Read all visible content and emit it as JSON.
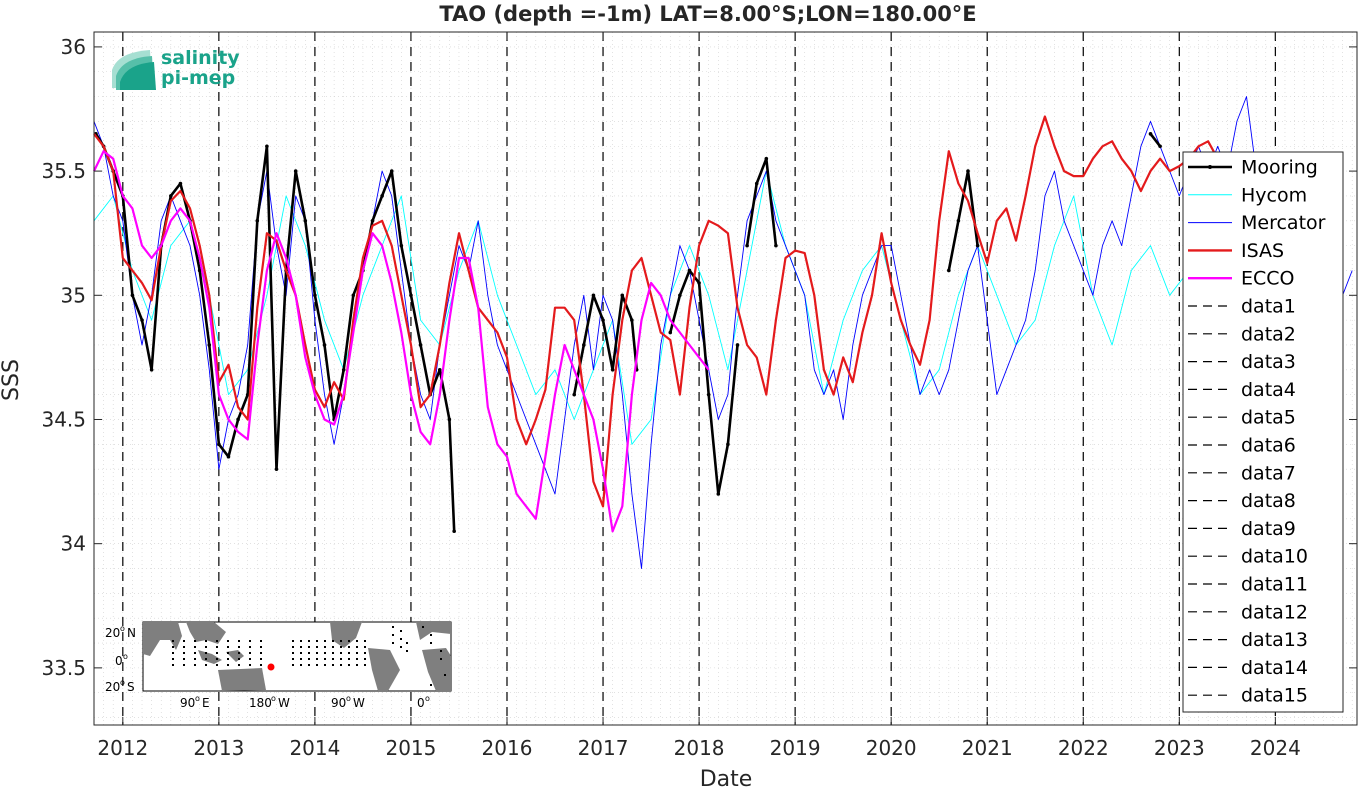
{
  "chart_data": {
    "type": "line",
    "title": "TAO (depth =-1m) LAT=8.00°S;LON=180.00°E",
    "xlabel": "Date",
    "ylabel": "SSS",
    "xlim": [
      2011.7,
      2024.85
    ],
    "ylim": [
      33.27,
      36.06
    ],
    "x_ticks": [
      2012,
      2013,
      2014,
      2015,
      2016,
      2017,
      2018,
      2019,
      2020,
      2021,
      2022,
      2023,
      2024
    ],
    "x_tick_labels": [
      "2012",
      "2013",
      "2014",
      "2015",
      "2016",
      "2017",
      "2018",
      "2019",
      "2020",
      "2021",
      "2022",
      "2023",
      "2024"
    ],
    "y_ticks": [
      33.5,
      34,
      34.5,
      35,
      35.5,
      36
    ],
    "y_tick_labels": [
      "33.5",
      "34",
      "34.5",
      "35",
      "35.5",
      "36"
    ],
    "grid": "minor-dotted",
    "legend_position": "right",
    "series": [
      {
        "name": "Mooring",
        "color": "#000000",
        "style": "solid-dots",
        "segments": [
          {
            "x": [
              2011.72,
              2011.8,
              2011.9,
              2012.0,
              2012.1,
              2012.2,
              2012.3,
              2012.4,
              2012.5,
              2012.6,
              2012.7,
              2012.8,
              2012.9,
              2013.0,
              2013.1,
              2013.2,
              2013.3,
              2013.4,
              2013.5,
              2013.6,
              2013.7,
              2013.8,
              2013.9,
              2014.0,
              2014.1,
              2014.2,
              2014.3,
              2014.4,
              2014.5,
              2014.6,
              2014.7,
              2014.8,
              2014.9,
              2015.0,
              2015.1,
              2015.2,
              2015.3,
              2015.4,
              2015.45
            ],
            "y": [
              35.65,
              35.6,
              35.5,
              35.4,
              35.0,
              34.9,
              34.7,
              35.2,
              35.4,
              35.45,
              35.3,
              35.1,
              34.8,
              34.4,
              34.35,
              34.5,
              34.6,
              35.3,
              35.6,
              34.3,
              35.1,
              35.5,
              35.3,
              35.0,
              34.8,
              34.5,
              34.7,
              35.0,
              35.1,
              35.3,
              35.4,
              35.5,
              35.2,
              35.0,
              34.8,
              34.6,
              34.7,
              34.5,
              34.05
            ]
          },
          {
            "x": [
              2016.7,
              2016.8,
              2016.9,
              2017.0,
              2017.1,
              2017.2,
              2017.3,
              2017.35
            ],
            "y": [
              34.6,
              34.8,
              35.0,
              34.9,
              34.7,
              35.0,
              34.9,
              34.7
            ]
          },
          {
            "x": [
              2017.7,
              2017.8,
              2017.9,
              2018.0,
              2018.1,
              2018.2,
              2018.3,
              2018.4
            ],
            "y": [
              34.85,
              35.0,
              35.1,
              35.05,
              34.6,
              34.2,
              34.4,
              34.8
            ]
          },
          {
            "x": [
              2018.5,
              2018.6,
              2018.7,
              2018.8
            ],
            "y": [
              35.2,
              35.45,
              35.55,
              35.2
            ]
          },
          {
            "x": [
              2020.6,
              2020.7,
              2020.8,
              2020.9
            ],
            "y": [
              35.1,
              35.3,
              35.5,
              35.2
            ]
          },
          {
            "x": [
              2022.7,
              2022.8
            ],
            "y": [
              35.65,
              35.6
            ]
          }
        ]
      },
      {
        "name": "Hycom",
        "color": "#00ffff",
        "style": "solid",
        "x": [
          2011.7,
          2011.9,
          2012.1,
          2012.3,
          2012.5,
          2012.7,
          2012.9,
          2013.1,
          2013.3,
          2013.5,
          2013.7,
          2013.9,
          2014.1,
          2014.3,
          2014.5,
          2014.7,
          2014.9,
          2015.1,
          2015.3,
          2015.5,
          2015.7,
          2015.9,
          2016.1,
          2016.3,
          2016.5,
          2016.7,
          2016.9,
          2017.1,
          2017.3,
          2017.5,
          2017.7,
          2017.9,
          2018.1,
          2018.3,
          2018.5,
          2018.7,
          2018.9,
          2019.1,
          2019.3,
          2019.5,
          2019.7,
          2019.9,
          2020.1,
          2020.3,
          2020.5,
          2020.7,
          2020.9,
          2021.1,
          2021.3,
          2021.5,
          2021.7,
          2021.9,
          2022.1,
          2022.3,
          2022.5,
          2022.7,
          2022.9,
          2023.1,
          2023.3,
          2023.5,
          2023.7,
          2023.9
        ],
        "y": [
          35.3,
          35.4,
          35.1,
          34.9,
          35.2,
          35.3,
          35.0,
          34.6,
          34.7,
          35.0,
          35.4,
          35.2,
          34.9,
          34.7,
          35.0,
          35.2,
          35.4,
          34.9,
          34.8,
          35.1,
          35.3,
          35.0,
          34.8,
          34.6,
          34.7,
          34.5,
          34.7,
          34.9,
          34.4,
          34.5,
          35.0,
          35.2,
          35.0,
          34.7,
          35.1,
          35.5,
          35.2,
          35.0,
          34.6,
          34.9,
          35.1,
          35.2,
          34.9,
          34.6,
          34.7,
          35.0,
          35.2,
          35.0,
          34.8,
          34.9,
          35.2,
          35.4,
          35.0,
          34.8,
          35.1,
          35.2,
          35.0,
          35.1,
          35.2,
          35.3,
          35.1,
          35.2
        ]
      },
      {
        "name": "Mercator",
        "color": "#0000ff",
        "style": "solid",
        "x": [
          2011.7,
          2011.8,
          2011.9,
          2012.0,
          2012.1,
          2012.2,
          2012.3,
          2012.4,
          2012.5,
          2012.6,
          2012.7,
          2012.8,
          2012.9,
          2013.0,
          2013.1,
          2013.2,
          2013.3,
          2013.4,
          2013.5,
          2013.6,
          2013.7,
          2013.8,
          2013.9,
          2014.0,
          2014.1,
          2014.2,
          2014.3,
          2014.4,
          2014.5,
          2014.6,
          2014.7,
          2014.8,
          2014.9,
          2015.0,
          2015.1,
          2015.2,
          2015.3,
          2015.4,
          2015.5,
          2015.6,
          2015.7,
          2015.8,
          2015.9,
          2016.0,
          2016.1,
          2016.2,
          2016.3,
          2016.4,
          2016.5,
          2016.6,
          2016.7,
          2016.8,
          2016.9,
          2017.0,
          2017.1,
          2017.2,
          2017.3,
          2017.4,
          2017.5,
          2017.6,
          2017.7,
          2017.8,
          2017.9,
          2018.0,
          2018.1,
          2018.2,
          2018.3,
          2018.4,
          2018.5,
          2018.6,
          2018.7,
          2018.8,
          2018.9,
          2019.0,
          2019.1,
          2019.2,
          2019.3,
          2019.4,
          2019.5,
          2019.6,
          2019.7,
          2019.8,
          2019.9,
          2020.0,
          2020.1,
          2020.2,
          2020.3,
          2020.4,
          2020.5,
          2020.6,
          2020.7,
          2020.8,
          2020.9,
          2021.0,
          2021.1,
          2021.2,
          2021.3,
          2021.4,
          2021.5,
          2021.6,
          2021.7,
          2021.8,
          2021.9,
          2022.0,
          2022.1,
          2022.2,
          2022.3,
          2022.4,
          2022.5,
          2022.6,
          2022.7,
          2022.8,
          2022.9,
          2023.0,
          2023.1,
          2023.2,
          2023.3,
          2023.4,
          2023.5,
          2023.6,
          2023.7,
          2023.8,
          2023.9,
          2024.0,
          2024.1,
          2024.2,
          2024.3,
          2024.4,
          2024.5,
          2024.6,
          2024.7,
          2024.8
        ],
        "y": [
          35.7,
          35.6,
          35.4,
          35.3,
          35.0,
          34.8,
          35.0,
          35.3,
          35.4,
          35.3,
          35.2,
          35.0,
          34.7,
          34.3,
          34.5,
          34.6,
          34.8,
          35.3,
          35.5,
          35.2,
          35.0,
          35.4,
          35.3,
          34.9,
          34.6,
          34.4,
          34.6,
          34.9,
          35.1,
          35.3,
          35.5,
          35.4,
          35.1,
          34.8,
          34.6,
          34.5,
          34.8,
          35.0,
          35.2,
          35.1,
          35.3,
          35.0,
          34.8,
          34.7,
          34.6,
          34.5,
          34.4,
          34.3,
          34.2,
          34.5,
          34.8,
          35.0,
          34.7,
          35.0,
          34.9,
          34.6,
          34.2,
          33.9,
          34.4,
          34.8,
          35.0,
          35.2,
          35.1,
          34.9,
          34.7,
          34.5,
          34.6,
          35.0,
          35.3,
          35.4,
          35.5,
          35.3,
          35.2,
          35.1,
          35.0,
          34.7,
          34.6,
          34.7,
          34.5,
          34.8,
          35.0,
          35.1,
          35.2,
          35.2,
          35.0,
          34.8,
          34.6,
          34.7,
          34.6,
          34.7,
          34.9,
          35.1,
          35.2,
          34.9,
          34.6,
          34.7,
          34.8,
          34.9,
          35.1,
          35.4,
          35.5,
          35.3,
          35.2,
          35.1,
          35.0,
          35.2,
          35.3,
          35.2,
          35.4,
          35.6,
          35.7,
          35.6,
          35.5,
          35.4,
          35.5,
          35.6,
          35.5,
          35.6,
          35.5,
          35.7,
          35.8,
          35.5,
          35.3,
          35.2,
          35.1,
          35.0,
          35.1,
          35.0,
          35.1,
          35.2,
          35.0,
          35.1
        ]
      },
      {
        "name": "ISAS",
        "color": "#e41a1c",
        "style": "solid",
        "x": [
          2011.7,
          2011.8,
          2011.9,
          2012.0,
          2012.1,
          2012.2,
          2012.3,
          2012.4,
          2012.5,
          2012.6,
          2012.7,
          2012.8,
          2012.9,
          2013.0,
          2013.1,
          2013.2,
          2013.3,
          2013.4,
          2013.5,
          2013.6,
          2013.7,
          2013.8,
          2013.9,
          2014.0,
          2014.1,
          2014.2,
          2014.3,
          2014.4,
          2014.5,
          2014.6,
          2014.7,
          2014.8,
          2014.9,
          2015.0,
          2015.1,
          2015.2,
          2015.3,
          2015.4,
          2015.5,
          2015.6,
          2015.7,
          2015.8,
          2015.9,
          2016.0,
          2016.1,
          2016.2,
          2016.3,
          2016.4,
          2016.5,
          2016.6,
          2016.7,
          2016.8,
          2016.9,
          2017.0,
          2017.1,
          2017.2,
          2017.3,
          2017.4,
          2017.5,
          2017.6,
          2017.7,
          2017.8,
          2017.9,
          2018.0,
          2018.1,
          2018.2,
          2018.3,
          2018.4,
          2018.5,
          2018.6,
          2018.7,
          2018.8,
          2018.9,
          2019.0,
          2019.1,
          2019.2,
          2019.3,
          2019.4,
          2019.5,
          2019.6,
          2019.7,
          2019.8,
          2019.9,
          2020.0,
          2020.1,
          2020.2,
          2020.3,
          2020.4,
          2020.5,
          2020.6,
          2020.7,
          2020.8,
          2020.9,
          2021.0,
          2021.1,
          2021.2,
          2021.3,
          2021.4,
          2021.5,
          2021.6,
          2021.7,
          2021.8,
          2021.9,
          2022.0,
          2022.1,
          2022.2,
          2022.3,
          2022.4,
          2022.5,
          2022.6,
          2022.7,
          2022.8,
          2022.9,
          2023.0,
          2023.1,
          2023.2,
          2023.3,
          2023.4,
          2023.5,
          2023.6,
          2023.7,
          2023.8
        ],
        "y": [
          35.65,
          35.6,
          35.5,
          35.15,
          35.1,
          35.05,
          34.98,
          35.2,
          35.38,
          35.42,
          35.35,
          35.2,
          35.0,
          34.65,
          34.72,
          34.55,
          34.5,
          34.95,
          35.25,
          35.22,
          35.1,
          35.0,
          34.8,
          34.62,
          34.55,
          34.65,
          34.58,
          34.9,
          35.15,
          35.28,
          35.3,
          35.2,
          35.0,
          34.8,
          34.55,
          34.6,
          34.8,
          35.05,
          35.25,
          35.1,
          34.95,
          34.9,
          34.85,
          34.75,
          34.5,
          34.4,
          34.5,
          34.62,
          34.95,
          34.95,
          34.9,
          34.6,
          34.25,
          34.15,
          34.6,
          34.9,
          35.1,
          35.15,
          35.0,
          34.85,
          34.82,
          34.6,
          34.95,
          35.2,
          35.3,
          35.28,
          35.25,
          34.95,
          34.8,
          34.75,
          34.6,
          34.9,
          35.15,
          35.18,
          35.17,
          35.0,
          34.7,
          34.6,
          34.75,
          34.65,
          34.85,
          35.0,
          35.25,
          35.05,
          34.9,
          34.8,
          34.72,
          34.9,
          35.3,
          35.58,
          35.45,
          35.38,
          35.25,
          35.13,
          35.3,
          35.35,
          35.22,
          35.4,
          35.6,
          35.72,
          35.6,
          35.5,
          35.48,
          35.48,
          35.55,
          35.6,
          35.62,
          35.55,
          35.5,
          35.42,
          35.5,
          35.55,
          35.5,
          35.52,
          35.55,
          35.6,
          35.62,
          35.55,
          35.5,
          35.5,
          35.55,
          35.5
        ]
      },
      {
        "name": "ECCO",
        "color": "#ff00ff",
        "style": "solid",
        "x": [
          2011.7,
          2011.8,
          2011.9,
          2012.0,
          2012.1,
          2012.2,
          2012.3,
          2012.4,
          2012.5,
          2012.6,
          2012.7,
          2012.8,
          2012.9,
          2013.0,
          2013.1,
          2013.2,
          2013.3,
          2013.4,
          2013.5,
          2013.6,
          2013.7,
          2013.8,
          2013.9,
          2014.0,
          2014.1,
          2014.2,
          2014.3,
          2014.4,
          2014.5,
          2014.6,
          2014.7,
          2014.8,
          2014.9,
          2015.0,
          2015.1,
          2015.2,
          2015.3,
          2015.4,
          2015.5,
          2015.6,
          2015.7,
          2015.8,
          2015.9,
          2016.0,
          2016.1,
          2016.2,
          2016.3,
          2016.4,
          2016.5,
          2016.6,
          2016.7,
          2016.8,
          2016.9,
          2017.0,
          2017.1,
          2017.2,
          2017.3,
          2017.4,
          2017.5,
          2017.6,
          2017.7,
          2017.8,
          2017.9,
          2018.0,
          2018.1
        ],
        "y": [
          35.5,
          35.58,
          35.55,
          35.4,
          35.35,
          35.2,
          35.15,
          35.2,
          35.3,
          35.35,
          35.3,
          35.15,
          34.95,
          34.6,
          34.5,
          34.45,
          34.42,
          34.8,
          35.1,
          35.25,
          35.15,
          35.0,
          34.75,
          34.6,
          34.5,
          34.48,
          34.6,
          34.85,
          35.1,
          35.25,
          35.2,
          35.05,
          34.85,
          34.6,
          34.45,
          34.4,
          34.6,
          34.9,
          35.15,
          35.15,
          34.95,
          34.55,
          34.4,
          34.35,
          34.2,
          34.15,
          34.1,
          34.35,
          34.6,
          34.8,
          34.7,
          34.6,
          34.5,
          34.3,
          34.05,
          34.15,
          34.6,
          34.9,
          35.05,
          35.0,
          34.9,
          34.85,
          34.8,
          34.75,
          34.7
        ]
      }
    ],
    "vlines_legend": [
      "data1",
      "data2",
      "data3",
      "data4",
      "data5",
      "data6",
      "data7",
      "data8",
      "data9",
      "data10",
      "data11",
      "data12",
      "data13",
      "data14",
      "data15"
    ],
    "vlines_x": [
      2012,
      2013,
      2014,
      2015,
      2016,
      2017,
      2018,
      2019,
      2020,
      2021,
      2022,
      2023,
      2024
    ]
  },
  "logo": {
    "line1": "salinity",
    "line2": "pi-mep"
  },
  "inset_map": {
    "lat_labels": [
      "20",
      "N",
      "0",
      "20",
      "S"
    ],
    "lon_labels": [
      "90",
      "E",
      "180",
      "W",
      "90",
      "W",
      "0"
    ],
    "degree": "o"
  },
  "colors": {
    "axis": "#262626",
    "grid": "#cfcfcf",
    "logo": "#1aa38a",
    "land": "#7f7f7f",
    "ocean": "#ffffff",
    "station": "#000000",
    "marker": "#ff0000"
  }
}
